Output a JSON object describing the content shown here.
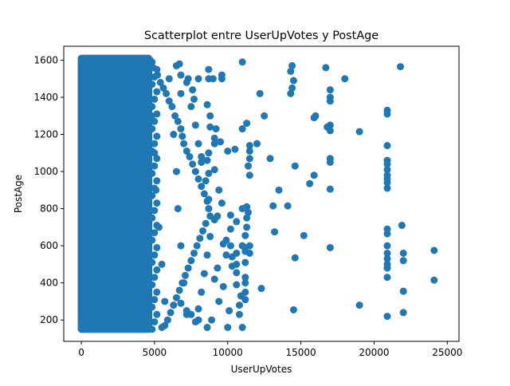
{
  "chart_data": {
    "type": "scatter",
    "title": "Scatterplot entre UserUpVotes y PostAge",
    "xlabel": "UserUpVotes",
    "ylabel": "PostAge",
    "xlim": [
      -1200,
      25800
    ],
    "ylim": [
      85,
      1675
    ],
    "xticks": [
      0,
      5000,
      10000,
      15000,
      20000,
      25000
    ],
    "xtick_labels": [
      "0",
      "5000",
      "10000",
      "15000",
      "20000",
      "25000"
    ],
    "yticks": [
      200,
      400,
      600,
      800,
      1000,
      1200,
      1400,
      1600
    ],
    "ytick_labels": [
      "200",
      "400",
      "600",
      "800",
      "1000",
      "1200",
      "1400",
      "1600"
    ],
    "grid": false,
    "marker_color": "#1f77b4",
    "dense_region": {
      "x": [
        0,
        4600
      ],
      "y": [
        150,
        1610
      ]
    },
    "points": [
      [
        4700,
        1600
      ],
      [
        4900,
        1560
      ],
      [
        5200,
        1520
      ],
      [
        5400,
        1480
      ],
      [
        5600,
        1450
      ],
      [
        5800,
        1420
      ],
      [
        6000,
        1380
      ],
      [
        6200,
        1350
      ],
      [
        6400,
        1300
      ],
      [
        6600,
        1270
      ],
      [
        6800,
        1230
      ],
      [
        6900,
        1190
      ],
      [
        7000,
        1150
      ],
      [
        7200,
        1110
      ],
      [
        7400,
        1080
      ],
      [
        7600,
        1040
      ],
      [
        7800,
        1000
      ],
      [
        8000,
        960
      ],
      [
        8200,
        920
      ],
      [
        8400,
        880
      ],
      [
        8600,
        840
      ],
      [
        8700,
        800
      ],
      [
        8800,
        760
      ],
      [
        8500,
        720
      ],
      [
        8300,
        680
      ],
      [
        8100,
        640
      ],
      [
        7900,
        600
      ],
      [
        7700,
        560
      ],
      [
        7500,
        520
      ],
      [
        7300,
        480
      ],
      [
        7100,
        440
      ],
      [
        6900,
        400
      ],
      [
        6700,
        360
      ],
      [
        6500,
        320
      ],
      [
        6300,
        280
      ],
      [
        6100,
        240
      ],
      [
        5900,
        200
      ],
      [
        5700,
        170
      ],
      [
        5500,
        160
      ],
      [
        4800,
        1300
      ],
      [
        5000,
        1100
      ],
      [
        5100,
        900
      ],
      [
        5300,
        700
      ],
      [
        5500,
        500
      ],
      [
        5700,
        300
      ],
      [
        6000,
        1500
      ],
      [
        6300,
        1200
      ],
      [
        6500,
        1000
      ],
      [
        6600,
        800
      ],
      [
        6800,
        600
      ],
      [
        7000,
        400
      ],
      [
        7200,
        250
      ],
      [
        7500,
        1350
      ],
      [
        7800,
        1250
      ],
      [
        8000,
        1150
      ],
      [
        8200,
        1050
      ],
      [
        8500,
        950
      ],
      [
        8700,
        850
      ],
      [
        8800,
        650
      ],
      [
        8600,
        550
      ],
      [
        8400,
        450
      ],
      [
        8200,
        350
      ],
      [
        8000,
        260
      ],
      [
        7800,
        190
      ],
      [
        6700,
        1580
      ],
      [
        6500,
        1570
      ],
      [
        6800,
        1520
      ],
      [
        7300,
        1500
      ],
      [
        8000,
        1500
      ],
      [
        8700,
        1550
      ],
      [
        8700,
        1500
      ],
      [
        9000,
        1500
      ],
      [
        9600,
        1520
      ],
      [
        9600,
        1500
      ],
      [
        11000,
        1590
      ],
      [
        7200,
        1480
      ],
      [
        6800,
        1420
      ],
      [
        7600,
        1440
      ],
      [
        7700,
        1390
      ],
      [
        8600,
        1360
      ],
      [
        8800,
        1300
      ],
      [
        9200,
        1230
      ],
      [
        8800,
        1240
      ],
      [
        9100,
        1180
      ],
      [
        8700,
        1100
      ],
      [
        8600,
        1060
      ],
      [
        8700,
        990
      ],
      [
        8200,
        1080
      ],
      [
        9100,
        1010
      ],
      [
        9500,
        1160
      ],
      [
        9100,
        1150
      ],
      [
        10000,
        1110
      ],
      [
        10500,
        1120
      ],
      [
        11000,
        1230
      ],
      [
        11300,
        1260
      ],
      [
        11500,
        1140
      ],
      [
        11500,
        1110
      ],
      [
        11500,
        1070
      ],
      [
        11400,
        1030
      ],
      [
        11500,
        980
      ],
      [
        12000,
        1150
      ],
      [
        12200,
        1420
      ],
      [
        12900,
        1070
      ],
      [
        14300,
        1540
      ],
      [
        14400,
        1570
      ],
      [
        14500,
        1490
      ],
      [
        14400,
        1450
      ],
      [
        14300,
        1420
      ],
      [
        14600,
        1030
      ],
      [
        15600,
        935
      ],
      [
        15900,
        980
      ],
      [
        15900,
        1290
      ],
      [
        16700,
        1560
      ],
      [
        17000,
        1440
      ],
      [
        17000,
        1400
      ],
      [
        17000,
        1380
      ],
      [
        17000,
        1250
      ],
      [
        16800,
        1240
      ],
      [
        17000,
        1220
      ],
      [
        17000,
        1070
      ],
      [
        17000,
        1050
      ],
      [
        17000,
        905
      ],
      [
        17000,
        590
      ],
      [
        15200,
        655
      ],
      [
        14600,
        535
      ],
      [
        14500,
        255
      ],
      [
        13100,
        815
      ],
      [
        14100,
        815
      ],
      [
        13200,
        675
      ],
      [
        10200,
        765
      ],
      [
        10600,
        730
      ],
      [
        11000,
        800
      ],
      [
        11300,
        810
      ],
      [
        11400,
        780
      ],
      [
        11300,
        750
      ],
      [
        11300,
        700
      ],
      [
        11200,
        655
      ],
      [
        11200,
        590
      ],
      [
        11200,
        510
      ],
      [
        11200,
        430
      ],
      [
        11200,
        400
      ],
      [
        11200,
        350
      ],
      [
        11200,
        310
      ],
      [
        11000,
        160
      ],
      [
        10100,
        250
      ],
      [
        10300,
        490
      ],
      [
        10600,
        500
      ],
      [
        10600,
        390
      ],
      [
        10600,
        455
      ],
      [
        10800,
        280
      ],
      [
        10800,
        230
      ],
      [
        11000,
        600
      ],
      [
        11200,
        570
      ],
      [
        10200,
        690
      ],
      [
        9900,
        630
      ],
      [
        10200,
        600
      ],
      [
        10300,
        540
      ],
      [
        10600,
        560
      ],
      [
        11500,
        600
      ],
      [
        11500,
        560
      ],
      [
        12300,
        370
      ],
      [
        10900,
        330
      ],
      [
        9300,
        480
      ],
      [
        9100,
        420
      ],
      [
        9700,
        380
      ],
      [
        9400,
        300
      ],
      [
        9900,
        550
      ],
      [
        9700,
        610
      ],
      [
        9300,
        760
      ],
      [
        9600,
        830
      ],
      [
        9100,
        740
      ],
      [
        9400,
        900
      ],
      [
        10000,
        160
      ],
      [
        8900,
        200
      ],
      [
        8600,
        160
      ],
      [
        8000,
        200
      ],
      [
        7500,
        230
      ],
      [
        7200,
        230
      ],
      [
        6800,
        290
      ],
      [
        19000,
        1215
      ],
      [
        19000,
        280
      ],
      [
        20900,
        1330
      ],
      [
        20900,
        1310
      ],
      [
        20900,
        1140
      ],
      [
        20900,
        1060
      ],
      [
        20900,
        1040
      ],
      [
        20900,
        1010
      ],
      [
        20900,
        980
      ],
      [
        20900,
        960
      ],
      [
        20900,
        940
      ],
      [
        20900,
        910
      ],
      [
        20900,
        690
      ],
      [
        20900,
        665
      ],
      [
        20900,
        600
      ],
      [
        20900,
        560
      ],
      [
        20900,
        530
      ],
      [
        20900,
        500
      ],
      [
        20900,
        480
      ],
      [
        20900,
        430
      ],
      [
        20900,
        220
      ],
      [
        21800,
        1565
      ],
      [
        21900,
        710
      ],
      [
        22000,
        560
      ],
      [
        22000,
        520
      ],
      [
        22000,
        355
      ],
      [
        22000,
        240
      ],
      [
        24100,
        575
      ],
      [
        24100,
        415
      ],
      [
        18000,
        1500
      ],
      [
        16000,
        1300
      ],
      [
        13500,
        900
      ],
      [
        12500,
        1300
      ]
    ]
  }
}
